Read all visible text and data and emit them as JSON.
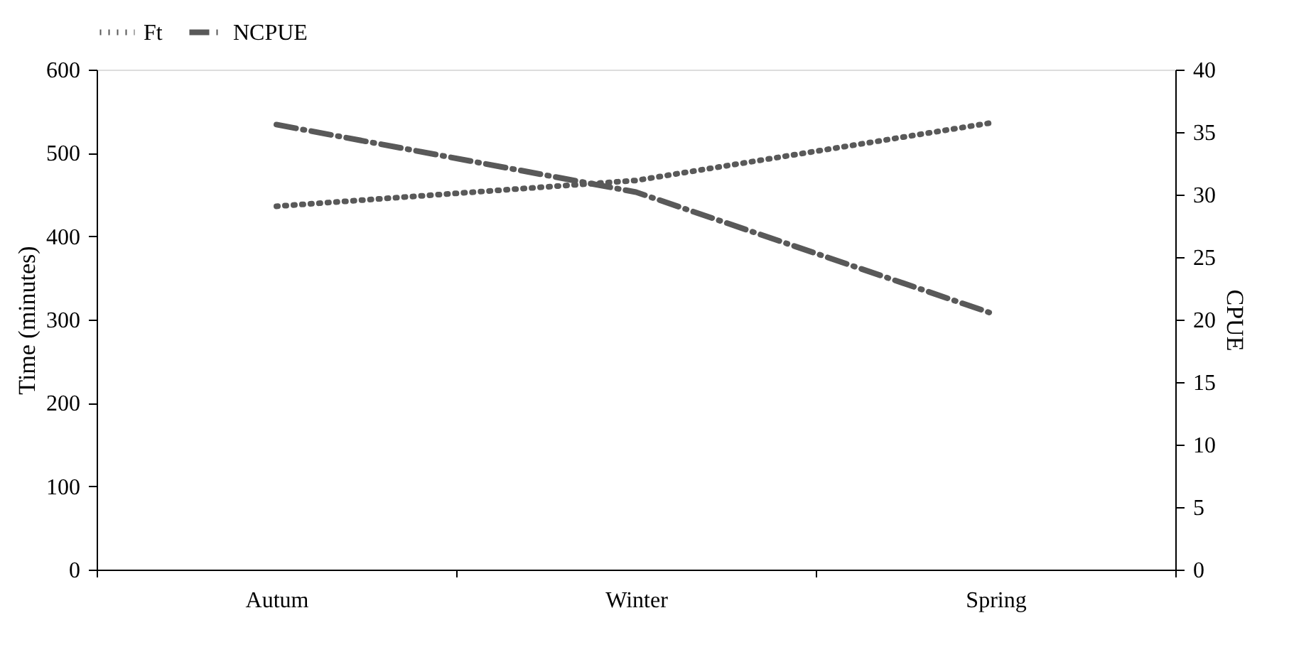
{
  "chart_data": {
    "type": "line",
    "categories": [
      "Autum",
      "Winter",
      "Spring"
    ],
    "series": [
      {
        "name": "Ft",
        "color": "#595959",
        "values": [
          436,
          467,
          537
        ],
        "line_style": "dotted"
      },
      {
        "name": "NCPUE",
        "color": "#595959",
        "values": [
          35.6,
          30.2,
          20.4
        ],
        "axis": "y2",
        "line_style": "dashdot"
      }
    ],
    "ylabel": "Time (minutes)",
    "y2label": "CPUE",
    "ylim": [
      0,
      600
    ],
    "yticks": [
      0,
      100,
      200,
      300,
      400,
      500,
      600
    ],
    "y2lim": [
      0,
      40
    ],
    "y2ticks": [
      0,
      5,
      10,
      15,
      20,
      25,
      30,
      35,
      40
    ],
    "grid": false,
    "legend": "top",
    "marker": "none"
  }
}
